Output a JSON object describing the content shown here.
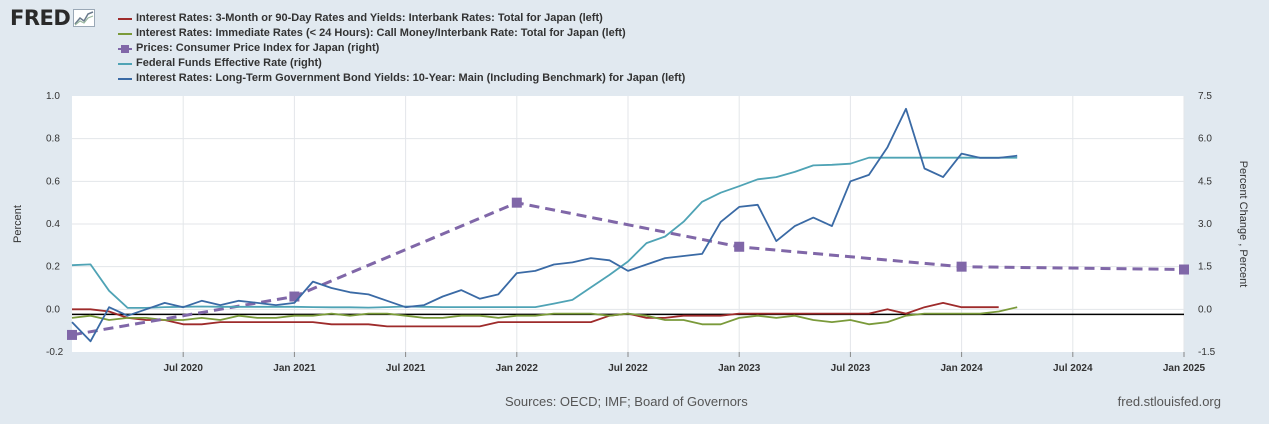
{
  "logo": {
    "text": "FRED",
    "icon": "graph-icon"
  },
  "footer": {
    "source": "Sources: OECD; IMF; Board of Governors",
    "site": "fred.stlouisfed.org"
  },
  "chart_data": {
    "type": "line",
    "title": "",
    "ylabel_left": "Percent",
    "ylabel_right": "Percent Change , Percent",
    "ylim_left": [
      -0.2,
      1.0
    ],
    "ylim_right": [
      -1.5,
      7.5
    ],
    "yticks_left": [
      "1.0",
      "0.8",
      "0.6",
      "0.4",
      "0.2",
      "0.0",
      "-0.2"
    ],
    "yticks_right": [
      "7.5",
      "6.0",
      "4.5",
      "3.0",
      "1.5",
      "0.0",
      "-1.5"
    ],
    "xticks": [
      "Jul 2020",
      "Jan 2021",
      "Jul 2021",
      "Jan 2022",
      "Jul 2022",
      "Jan 2023",
      "Jul 2023",
      "Jan 2024",
      "Jul 2024",
      "Jan 2025"
    ],
    "grid": true,
    "legend_position": "top-left",
    "series": [
      {
        "name": "Interest Rates: 3-Month or 90-Day Rates and Yields: Interbank Rates: Total for Japan (left)",
        "axis": "left",
        "color": "#9e2b2b",
        "style": "solid",
        "marker": false,
        "x": [
          "2020-01",
          "2020-02",
          "2020-03",
          "2020-04",
          "2020-05",
          "2020-06",
          "2020-07",
          "2020-08",
          "2020-09",
          "2020-10",
          "2020-11",
          "2020-12",
          "2021-01",
          "2021-02",
          "2021-03",
          "2021-04",
          "2021-05",
          "2021-06",
          "2021-07",
          "2021-08",
          "2021-09",
          "2021-10",
          "2021-11",
          "2021-12",
          "2022-01",
          "2022-02",
          "2022-03",
          "2022-04",
          "2022-05",
          "2022-06",
          "2022-07",
          "2022-08",
          "2022-09",
          "2022-10",
          "2022-11",
          "2022-12",
          "2023-01",
          "2023-02",
          "2023-03",
          "2023-04",
          "2023-05",
          "2023-06",
          "2023-07",
          "2023-08",
          "2023-09",
          "2023-10",
          "2023-11",
          "2023-12",
          "2024-01",
          "2024-02",
          "2024-03"
        ],
        "y": [
          0.0,
          0.0,
          -0.01,
          -0.04,
          -0.05,
          -0.05,
          -0.07,
          -0.07,
          -0.06,
          -0.06,
          -0.06,
          -0.06,
          -0.06,
          -0.06,
          -0.07,
          -0.07,
          -0.07,
          -0.08,
          -0.08,
          -0.08,
          -0.08,
          -0.08,
          -0.08,
          -0.06,
          -0.06,
          -0.06,
          -0.06,
          -0.06,
          -0.06,
          -0.03,
          -0.02,
          -0.04,
          -0.04,
          -0.03,
          -0.03,
          -0.03,
          -0.02,
          -0.02,
          -0.02,
          -0.02,
          -0.02,
          -0.02,
          -0.02,
          -0.02,
          0.0,
          -0.02,
          0.01,
          0.03,
          0.01,
          0.01,
          0.01
        ]
      },
      {
        "name": "Interest Rates: Immediate Rates (< 24 Hours): Call Money/Interbank Rate: Total for Japan (left)",
        "axis": "left",
        "color": "#7a9a3a",
        "style": "solid",
        "marker": false,
        "x": [
          "2020-01",
          "2020-02",
          "2020-03",
          "2020-04",
          "2020-05",
          "2020-06",
          "2020-07",
          "2020-08",
          "2020-09",
          "2020-10",
          "2020-11",
          "2020-12",
          "2021-01",
          "2021-02",
          "2021-03",
          "2021-04",
          "2021-05",
          "2021-06",
          "2021-07",
          "2021-08",
          "2021-09",
          "2021-10",
          "2021-11",
          "2021-12",
          "2022-01",
          "2022-02",
          "2022-03",
          "2022-04",
          "2022-05",
          "2022-06",
          "2022-07",
          "2022-08",
          "2022-09",
          "2022-10",
          "2022-11",
          "2022-12",
          "2023-01",
          "2023-02",
          "2023-03",
          "2023-04",
          "2023-05",
          "2023-06",
          "2023-07",
          "2023-08",
          "2023-09",
          "2023-10",
          "2023-11",
          "2023-12",
          "2024-01",
          "2024-02",
          "2024-03",
          "2024-04"
        ],
        "y": [
          -0.04,
          -0.03,
          -0.05,
          -0.04,
          -0.04,
          -0.05,
          -0.05,
          -0.04,
          -0.05,
          -0.03,
          -0.04,
          -0.04,
          -0.03,
          -0.03,
          -0.02,
          -0.03,
          -0.02,
          -0.02,
          -0.03,
          -0.04,
          -0.04,
          -0.03,
          -0.03,
          -0.04,
          -0.03,
          -0.03,
          -0.02,
          -0.02,
          -0.02,
          -0.03,
          -0.02,
          -0.03,
          -0.05,
          -0.05,
          -0.07,
          -0.07,
          -0.04,
          -0.03,
          -0.04,
          -0.03,
          -0.05,
          -0.06,
          -0.05,
          -0.07,
          -0.06,
          -0.03,
          -0.02,
          -0.02,
          -0.02,
          -0.02,
          -0.01,
          0.01
        ]
      },
      {
        "name": "Prices: Consumer Price Index for Japan (right)",
        "axis": "right",
        "color": "#8067a8",
        "style": "dashed",
        "marker": true,
        "x": [
          "2020-01",
          "2021-01",
          "2022-01",
          "2023-01",
          "2024-01",
          "2025-01"
        ],
        "y": [
          -0.9,
          0.45,
          3.75,
          2.2,
          1.5,
          1.4
        ]
      },
      {
        "name": "Federal Funds Effective Rate (right)",
        "axis": "right",
        "color": "#4fa3b5",
        "style": "solid",
        "marker": false,
        "x": [
          "2020-01",
          "2020-02",
          "2020-03",
          "2020-04",
          "2020-05",
          "2020-06",
          "2020-07",
          "2020-08",
          "2020-09",
          "2020-10",
          "2020-11",
          "2020-12",
          "2021-01",
          "2021-02",
          "2021-03",
          "2021-04",
          "2021-05",
          "2021-06",
          "2021-07",
          "2021-08",
          "2021-09",
          "2021-10",
          "2021-11",
          "2021-12",
          "2022-01",
          "2022-02",
          "2022-03",
          "2022-04",
          "2022-05",
          "2022-06",
          "2022-07",
          "2022-08",
          "2022-09",
          "2022-10",
          "2022-11",
          "2022-12",
          "2023-01",
          "2023-02",
          "2023-03",
          "2023-04",
          "2023-05",
          "2023-06",
          "2023-07",
          "2023-08",
          "2023-09",
          "2023-10",
          "2023-11",
          "2023-12",
          "2024-01",
          "2024-02",
          "2024-03",
          "2024-04"
        ],
        "y": [
          1.55,
          1.58,
          0.65,
          0.05,
          0.05,
          0.08,
          0.09,
          0.1,
          0.09,
          0.09,
          0.09,
          0.09,
          0.09,
          0.08,
          0.07,
          0.07,
          0.06,
          0.08,
          0.1,
          0.09,
          0.08,
          0.08,
          0.08,
          0.08,
          0.08,
          0.08,
          0.2,
          0.33,
          0.77,
          1.21,
          1.68,
          2.33,
          2.56,
          3.08,
          3.78,
          4.1,
          4.33,
          4.57,
          4.65,
          4.83,
          5.06,
          5.08,
          5.12,
          5.33,
          5.33,
          5.33,
          5.33,
          5.33,
          5.33,
          5.33,
          5.33,
          5.33
        ]
      },
      {
        "name": "Interest Rates: Long-Term Government Bond Yields: 10-Year: Main (Including Benchmark) for Japan (left)",
        "axis": "left",
        "color": "#3a6aa5",
        "style": "solid",
        "marker": false,
        "x": [
          "2020-01",
          "2020-02",
          "2020-03",
          "2020-04",
          "2020-05",
          "2020-06",
          "2020-07",
          "2020-08",
          "2020-09",
          "2020-10",
          "2020-11",
          "2020-12",
          "2021-01",
          "2021-02",
          "2021-03",
          "2021-04",
          "2021-05",
          "2021-06",
          "2021-07",
          "2021-08",
          "2021-09",
          "2021-10",
          "2021-11",
          "2021-12",
          "2022-01",
          "2022-02",
          "2022-03",
          "2022-04",
          "2022-05",
          "2022-06",
          "2022-07",
          "2022-08",
          "2022-09",
          "2022-10",
          "2022-11",
          "2022-12",
          "2023-01",
          "2023-02",
          "2023-03",
          "2023-04",
          "2023-05",
          "2023-06",
          "2023-07",
          "2023-08",
          "2023-09",
          "2023-10",
          "2023-11",
          "2023-12",
          "2024-01",
          "2024-02",
          "2024-03",
          "2024-04"
        ],
        "y": [
          -0.06,
          -0.15,
          0.01,
          -0.03,
          0.0,
          0.03,
          0.01,
          0.04,
          0.02,
          0.04,
          0.03,
          0.02,
          0.03,
          0.13,
          0.1,
          0.08,
          0.07,
          0.04,
          0.01,
          0.02,
          0.06,
          0.09,
          0.05,
          0.07,
          0.17,
          0.18,
          0.21,
          0.22,
          0.24,
          0.23,
          0.18,
          0.21,
          0.24,
          0.25,
          0.26,
          0.41,
          0.48,
          0.49,
          0.32,
          0.39,
          0.43,
          0.39,
          0.6,
          0.63,
          0.76,
          0.94,
          0.66,
          0.62,
          0.73,
          0.71,
          0.71,
          0.72
        ]
      }
    ]
  }
}
